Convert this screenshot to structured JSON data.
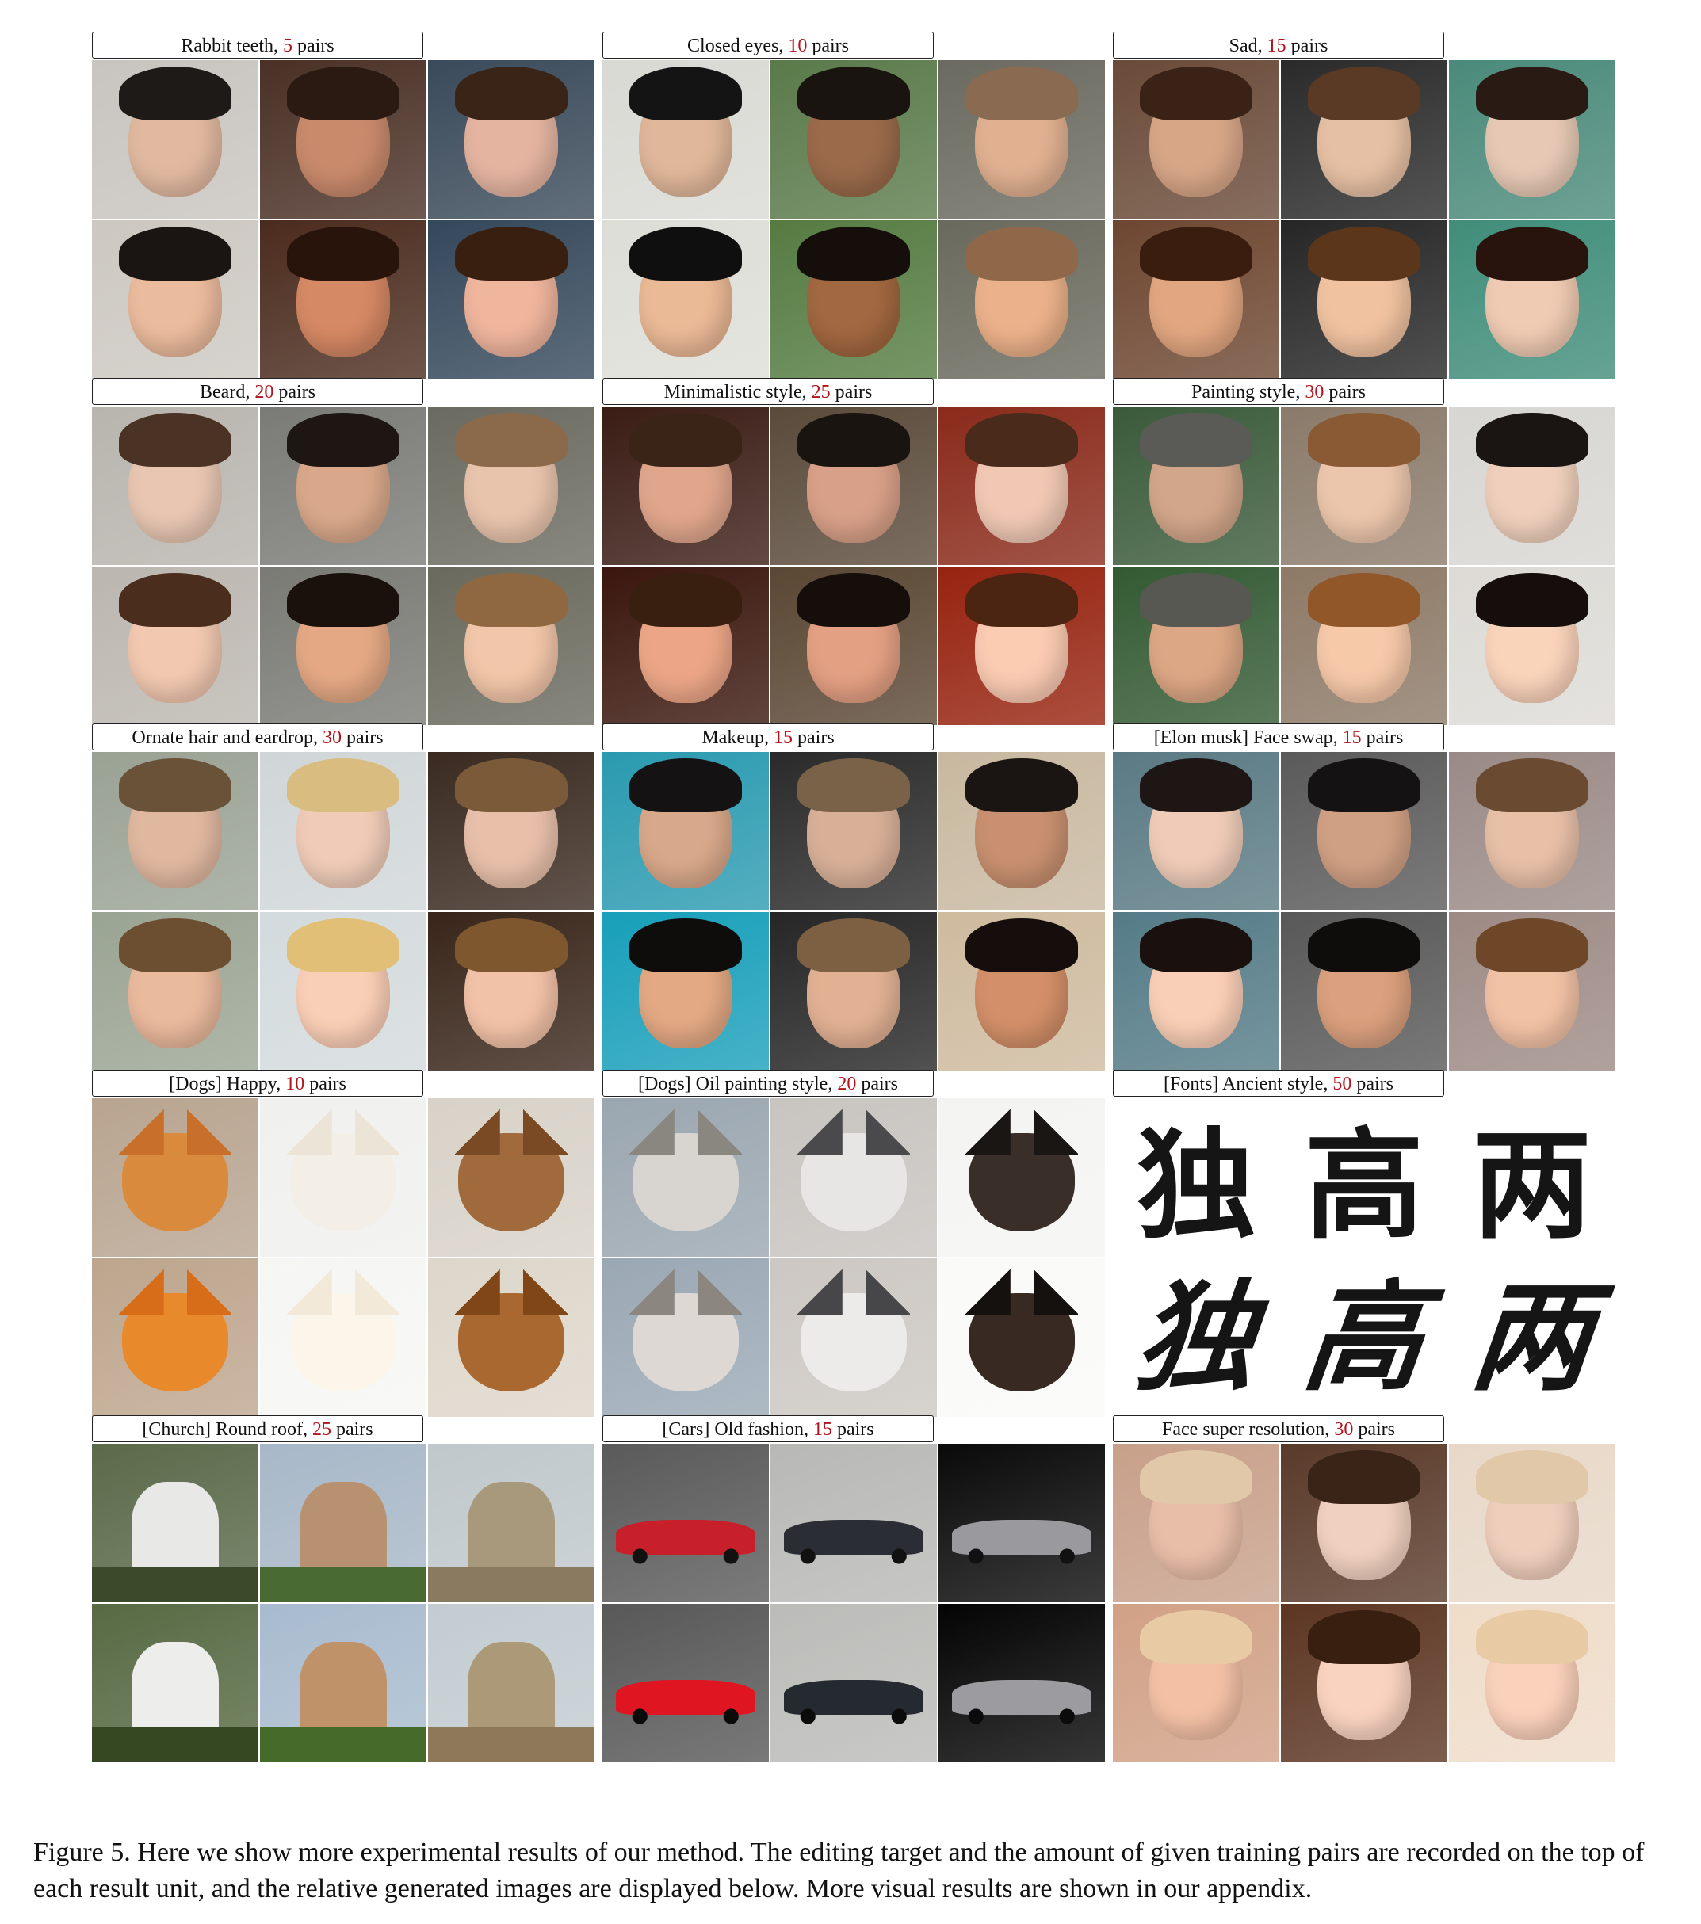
{
  "units": [
    {
      "prefix": "Rabbit teeth, ",
      "count": "5",
      "suffix": " pairs",
      "bg": [
        "#c8c4bf",
        "#4a3025",
        "#3a4a5a"
      ],
      "skin": [
        "#e1b9a0",
        "#c98a6c",
        "#e4b4a0"
      ],
      "hair": [
        "#1e1a18",
        "#2a1a12",
        "#3a2418"
      ],
      "kind": "face"
    },
    {
      "prefix": "Closed eyes, ",
      "count": "10",
      "suffix": " pairs",
      "bg": [
        "#d9d9d4",
        "#5a7a4a",
        "#6a6a60"
      ],
      "skin": [
        "#e0b79a",
        "#9a6a4a",
        "#e0b090"
      ],
      "hair": [
        "#141414",
        "#1a1410",
        "#8a6a50"
      ],
      "kind": "face"
    },
    {
      "prefix": "Sad, ",
      "count": "15",
      "suffix": " pairs",
      "bg": [
        "#6a4a38",
        "#2a2a2a",
        "#4a8a7a"
      ],
      "skin": [
        "#d7a687",
        "#e6c0a4",
        "#e6c8b4"
      ],
      "hair": [
        "#3a2216",
        "#5a3a24",
        "#2a1a14"
      ],
      "kind": "face"
    },
    {
      "prefix": "Beard, ",
      "count": "20",
      "suffix": " pairs",
      "bg": [
        "#b8b4ae",
        "#7a7a76",
        "#6a6a60"
      ],
      "skin": [
        "#e8c6b2",
        "#d9a88a",
        "#e8c4ac"
      ],
      "hair": [
        "#4a3224",
        "#1e1612",
        "#8a6a4a"
      ],
      "kind": "face"
    },
    {
      "prefix": "Minimalistic style, ",
      "count": "25",
      "suffix": " pairs",
      "bg": [
        "#3a1c14",
        "#5a4a3a",
        "#8a2a1a"
      ],
      "skin": [
        "#e0a68c",
        "#d8a088",
        "#f0c8b4"
      ],
      "hair": [
        "#3a2418",
        "#1a1410",
        "#4a2a1a"
      ],
      "kind": "face"
    },
    {
      "prefix": "Painting style, ",
      "count": "30",
      "suffix": " pairs",
      "bg": [
        "#3a5a3a",
        "#8a7a6a",
        "#d8d6d2"
      ],
      "skin": [
        "#d2a68a",
        "#ecc6ac",
        "#f0d0bc"
      ],
      "hair": [
        "#5a5a56",
        "#8a5a34",
        "#1a1412"
      ],
      "kind": "face"
    },
    {
      "prefix": "Ornate hair and eardrop, ",
      "count": "30",
      "suffix": " pairs",
      "bg": [
        "#9aa294",
        "#d0d6d8",
        "#3a2a20"
      ],
      "skin": [
        "#e0b8a0",
        "#f0ccb8",
        "#e8c0aa"
      ],
      "hair": [
        "#6a5238",
        "#d8bc80",
        "#7a5a38"
      ],
      "kind": "face"
    },
    {
      "prefix": "Makeup, ",
      "count": "15",
      "suffix": " pairs",
      "bg": [
        "#2a9ab0",
        "#2a2a2a",
        "#c8b8a0"
      ],
      "skin": [
        "#d8a88a",
        "#d8b098",
        "#c89070"
      ],
      "hair": [
        "#141212",
        "#7a6248",
        "#1a1412"
      ],
      "kind": "face"
    },
    {
      "prefix": "[Elon musk] Face swap, ",
      "count": "15",
      "suffix": " pairs",
      "bg": [
        "#5a7a84",
        "#5a5a5a",
        "#9a8a86"
      ],
      "skin": [
        "#f0ccb8",
        "#d0a084",
        "#e8c0a8"
      ],
      "hair": [
        "#1e1614",
        "#141212",
        "#6a4a30"
      ],
      "kind": "face"
    },
    {
      "prefix": "[Dogs] Happy, ",
      "count": "10",
      "suffix": " pairs",
      "bg": [
        "#b8a490",
        "#f0f0ee",
        "#d8d2c8"
      ],
      "skin": [
        "#d98a3c",
        "#f4efe6",
        "#a06a3c"
      ],
      "hair": [
        "#c8702a",
        "#ece4d6",
        "#7a4a24"
      ],
      "kind": "dog"
    },
    {
      "prefix": "[Dogs] Oil painting style, ",
      "count": "20",
      "suffix": " pairs",
      "bg": [
        "#9aa6b0",
        "#c8c4c0",
        "#f4f4f2"
      ],
      "skin": [
        "#d8d4d0",
        "#e8e6e4",
        "#3a2e28"
      ],
      "hair": [
        "#8a8680",
        "#4a4a4c",
        "#1a1614"
      ],
      "kind": "dog"
    },
    {
      "prefix": "[Church] Round roof, ",
      "count": "25",
      "suffix": " pairs",
      "bg": [
        "#5a6a4a",
        "#a8b8c8",
        "#c0c8cc"
      ],
      "skin": [
        "#e8e8e6",
        "#b89270",
        "#a8987c"
      ],
      "hair": [
        "#3a4a2a",
        "#4a6a34",
        "#8a7a60"
      ],
      "kind": "church"
    },
    {
      "prefix": "[Cars] Old fashion, ",
      "count": "15",
      "suffix": " pairs",
      "bg": [
        "#5a5a5a",
        "#b8b8b6",
        "#0a0a0a"
      ],
      "skin": [
        "#c8202a",
        "#2a2e34",
        "#9a9a9e"
      ],
      "hair": [
        "#6a6a6a",
        "#8a8a88",
        "#0a0a0a"
      ],
      "kind": "car"
    },
    {
      "prefix": "Face super resolution, ",
      "count": "30",
      "suffix": " pairs",
      "bg": [
        "#c8a08a",
        "#5a3a2a",
        "#e8d8c8"
      ],
      "skin": [
        "#e8bea8",
        "#f0d0c0",
        "#f0cebc"
      ],
      "hair": [
        "#e0c8a8",
        "#3a2418",
        "#e0c8a8"
      ],
      "kind": "face"
    }
  ],
  "fonts_unit": {
    "prefix": "[Fonts] Ancient style, ",
    "count": "50",
    "suffix": " pairs",
    "source_glyphs": [
      "独",
      "高",
      "两"
    ],
    "generated_glyphs": [
      "独",
      "高",
      "两"
    ]
  },
  "caption": "Figure 5. Here we show more experimental results of our method. The editing target and the amount of given training pairs are recorded on the top of each result unit, and the relative generated images are displayed below. More visual results are shown in our appendix.",
  "colors": {
    "count_text": "#b3141b",
    "label_border": "#222222"
  }
}
